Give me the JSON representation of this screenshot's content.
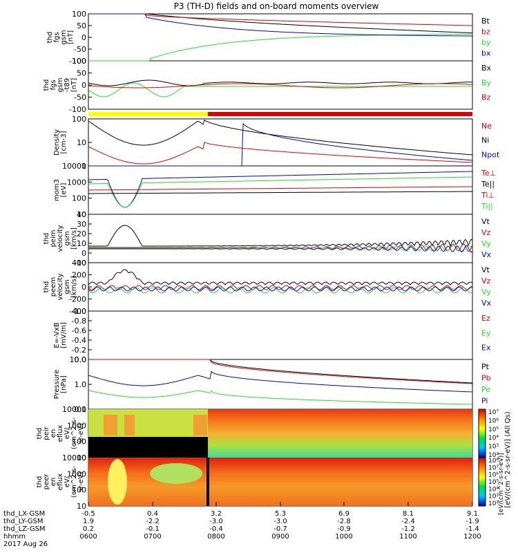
{
  "title": "P3 (TH-D) fields and on-board moments overview",
  "colors": {
    "black": "#000000",
    "red": "#e00000",
    "green": "#22dd22",
    "blue": "#0000e0",
    "yellow": "#ffff00"
  },
  "chart_data": [
    {
      "type": "line",
      "name": "fgs-gsm",
      "ylabel": [
        "thd",
        "fgs",
        "gsm",
        "[nT]"
      ],
      "yticks": [
        "100",
        "50",
        "0",
        "-50",
        "-100"
      ],
      "ylim": [
        -100,
        100
      ],
      "legend": [
        {
          "label": "Bt",
          "color": "#000000"
        },
        {
          "label": "bz",
          "color": "#e00000"
        },
        {
          "label": "by",
          "color": "#22dd22"
        },
        {
          "label": "bx",
          "color": "#0000e0"
        }
      ]
    },
    {
      "type": "line",
      "name": "fgs-gsm-t89",
      "ylabel": [
        "thd",
        "fgs",
        "gsm",
        "-t89",
        "[nT]"
      ],
      "yticks": [
        "100",
        "50",
        "0",
        "-50",
        "-100"
      ],
      "ylim": [
        -120,
        100
      ],
      "legend": [
        {
          "label": "Bx",
          "color": "#000000"
        },
        {
          "label": "By",
          "color": "#22dd22"
        },
        {
          "label": "Bz",
          "color": "#e00000"
        }
      ]
    },
    {
      "type": "line",
      "name": "density",
      "ylabel": [
        "Density",
        "[cm-3]"
      ],
      "yticks": [
        "100",
        "10",
        "1"
      ],
      "yscale": "log",
      "legend": [
        {
          "label": "Ne",
          "color": "#e00000"
        },
        {
          "label": "Ni",
          "color": "#000000"
        },
        {
          "label": "Npot",
          "color": "#0000e0"
        }
      ]
    },
    {
      "type": "line",
      "name": "temperature",
      "ylabel": [
        "mom3",
        "[eV]"
      ],
      "yticks": [
        "10000",
        "1000",
        "100",
        "10"
      ],
      "yscale": "log",
      "legend": [
        {
          "label": "Te⊥",
          "color": "#e00000"
        },
        {
          "label": "Te||",
          "color": "#000000"
        },
        {
          "label": "Ti⊥",
          "color": "#e00000"
        },
        {
          "label": "Ti||",
          "color": "#22dd22"
        }
      ]
    },
    {
      "type": "line",
      "name": "ion-velocity",
      "ylabel": [
        "thd",
        "peim",
        "velocity",
        "gsm",
        "[km/s]"
      ],
      "yticks": [
        "40",
        "30",
        "20",
        "10",
        "0",
        "-10"
      ],
      "ylim": [
        -15,
        40
      ],
      "legend": [
        {
          "label": "Vt",
          "color": "#000000"
        },
        {
          "label": "Vz",
          "color": "#e00000"
        },
        {
          "label": "Vy",
          "color": "#22dd22"
        },
        {
          "label": "Vx",
          "color": "#0000e0"
        }
      ]
    },
    {
      "type": "line",
      "name": "electron-velocity",
      "ylabel": [
        "thd",
        "peem",
        "velocity",
        "gsm",
        "[km/s]"
      ],
      "yticks": [
        "400",
        "200",
        "0",
        "-200",
        "-400"
      ],
      "ylim": [
        -400,
        400
      ],
      "legend": [
        {
          "label": "Vt",
          "color": "#000000"
        },
        {
          "label": "Vz",
          "color": "#e00000"
        },
        {
          "label": "Vy",
          "color": "#22dd22"
        },
        {
          "label": "Vx",
          "color": "#0000e0"
        }
      ]
    },
    {
      "type": "line",
      "name": "efield",
      "ylabel": [
        "E=-VxB",
        "[mV/m]"
      ],
      "yticks": [
        "-1.0",
        "-0.8",
        "-0.6",
        "-0.4",
        "-0.2",
        "0.0"
      ],
      "ylim": [
        -1,
        0
      ],
      "legend": [
        {
          "label": "Ez",
          "color": "#e00000"
        },
        {
          "label": "Ey",
          "color": "#22dd22"
        },
        {
          "label": "Ex",
          "color": "#0000e0"
        }
      ]
    },
    {
      "type": "line",
      "name": "pressure",
      "ylabel": [
        "Pressure",
        "[nPa]"
      ],
      "yticks": [
        "10.0",
        "1.0",
        "0.1"
      ],
      "yscale": "log",
      "legend": [
        {
          "label": "Pt",
          "color": "#000000"
        },
        {
          "label": "Pb",
          "color": "#e00000"
        },
        {
          "label": "Pe",
          "color": "#22dd22"
        },
        {
          "label": "Pi",
          "color": "#0000e0"
        }
      ]
    },
    {
      "type": "heatmap",
      "name": "ion-spectrogram",
      "ylabel": [
        "thd",
        "peir",
        "en",
        "eflux",
        "eV/",
        "(cm^2-s-",
        "sr-eV)"
      ],
      "yticks": [
        "10000",
        "1000",
        "100",
        "10"
      ],
      "colorbar": {
        "ticks": [
          "10⁷",
          "10⁶",
          "10⁵",
          "10⁴",
          "10³",
          "10²"
        ],
        "label": "[eV/(cm^2-s-sr-eV)] (All Qs)"
      }
    },
    {
      "type": "heatmap",
      "name": "electron-spectrogram",
      "ylabel": [
        "thd",
        "peer",
        "en",
        "eflux",
        "eV/",
        "(cm^2-s-",
        "sr-eV)"
      ],
      "yticks": [
        "10000",
        "1000",
        "100",
        "10"
      ],
      "colorbar": {
        "ticks": [
          "10⁸",
          "10⁷",
          "10⁶",
          "10⁵",
          "10⁴",
          "10³",
          "10²"
        ],
        "label": "[eV/(cm^2-s-sr-eV)]"
      }
    }
  ],
  "xaxis": {
    "rows": [
      {
        "label": "thd_LX-GSM",
        "values": [
          "-0.5",
          "0.4",
          "3.2",
          "5.3",
          "6.9",
          "8.1",
          "9.1"
        ]
      },
      {
        "label": "thd_LY-GSM",
        "values": [
          "1.9",
          "-2.2",
          "-3.0",
          "-3.0",
          "-2.8",
          "-2.4",
          "-1.9"
        ]
      },
      {
        "label": "thd_LZ-GSM",
        "values": [
          "0.2",
          "-0.1",
          "-0.4",
          "-0.7",
          "-0.9",
          "-1.2",
          "-1.4"
        ]
      },
      {
        "label": "hhmm",
        "values": [
          "0600",
          "0700",
          "0800",
          "0900",
          "1000",
          "1100",
          "1200"
        ]
      }
    ],
    "date": "2017 Aug 26"
  }
}
